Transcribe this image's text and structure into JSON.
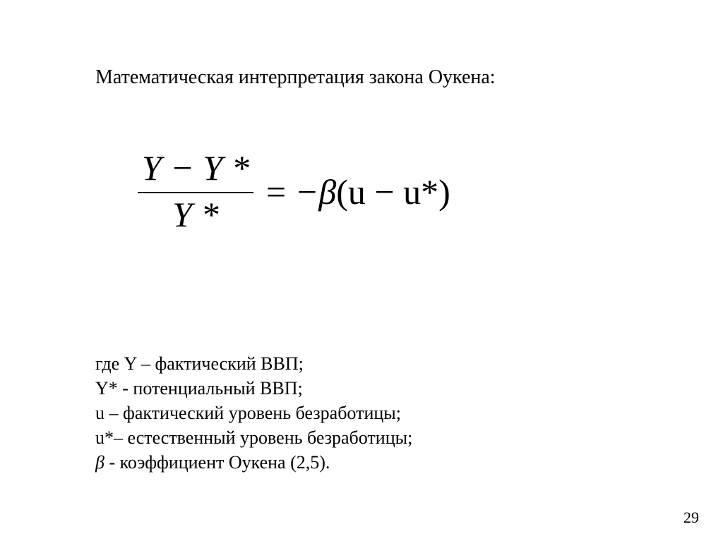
{
  "title": "Математическая интерпретация закона Оукена:",
  "formula": {
    "numerator": "Y − Y *",
    "denominator": "Y *",
    "equals": "=",
    "rhs_prefix": "−",
    "beta": "β",
    "rhs_paren": "(u − u*)"
  },
  "legend": {
    "l1_a": "где Y – фактический ВВП;",
    "l2_a": "Y* - потенциальный ВВП;",
    "l3_a": "u – фактический уровень безработицы;",
    "l4_a": "u*– естественный уровень безработицы;",
    "l5_beta": "β",
    "l5_rest": "  - коэффициент  Оукена (2,5)."
  },
  "page_number": "29",
  "colors": {
    "background": "#ffffff",
    "text": "#000000"
  },
  "fonts": {
    "body_family": "Times New Roman",
    "title_size_pt": 21,
    "formula_size_pt": 38,
    "legend_size_pt": 20,
    "pagenum_size_pt": 16
  }
}
